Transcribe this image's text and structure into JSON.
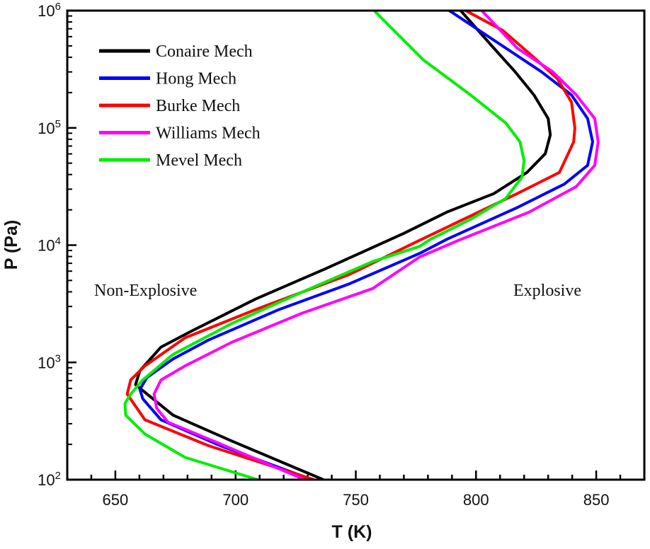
{
  "chart_data": {
    "type": "line",
    "title": "",
    "xlabel": "T (K)",
    "ylabel": "P (Pa)",
    "xlim": [
      630,
      870
    ],
    "ylim": [
      100,
      1000000
    ],
    "yscale": "log",
    "x_ticks": [
      650,
      700,
      750,
      800,
      850
    ],
    "x_tick_labels": [
      "650",
      "700",
      "750",
      "800",
      "850"
    ],
    "y_ticks": [
      100,
      1000,
      10000,
      100000,
      1000000
    ],
    "y_tick_labels": [
      {
        "base": "10",
        "exp": "2"
      },
      {
        "base": "10",
        "exp": "3"
      },
      {
        "base": "10",
        "exp": "4"
      },
      {
        "base": "10",
        "exp": "5"
      },
      {
        "base": "10",
        "exp": "6"
      }
    ],
    "grid": false,
    "legend_position": "top-left",
    "annotations": [
      "Non-Explosive",
      "Explosive"
    ],
    "series": [
      {
        "name": "Conaire Mech",
        "color": "#000000",
        "T": [
          736.5,
          698.3,
          674.0,
          658.4,
          660.2,
          669.0,
          681.9,
          708.3,
          737.6,
          769.9,
          787.8,
          807.4,
          821.2,
          828.8,
          830.9,
          830.0,
          824.1,
          816.2,
          807.4,
          793.6
        ],
        "P": [
          100,
          214,
          355,
          646,
          851,
          1350,
          1860,
          3470,
          6310,
          12600,
          19100,
          27500,
          41700,
          60300,
          87100,
          120000,
          191000,
          302000,
          479000,
          1000000
        ]
      },
      {
        "name": "Hong Mech",
        "color": "#0000ff",
        "T": [
          731.8,
          693.6,
          669.0,
          661.4,
          660.2,
          663.1,
          674.0,
          688.7,
          718.0,
          747.3,
          776.6,
          787.8,
          817.1,
          836.7,
          846.4,
          848.5,
          846.4,
          839.7,
          827.1,
          812.4,
          788.9
        ],
        "P": [
          100,
          195,
          324,
          490,
          589,
          741,
          1070,
          1550,
          2820,
          4680,
          8510,
          11200,
          20900,
          33100,
          47900,
          75900,
          120000,
          191000,
          302000,
          479000,
          1000000
        ]
      },
      {
        "name": "Burke Mech",
        "color": "#ff0000",
        "T": [
          732.6,
          688.7,
          662.3,
          654.9,
          656.4,
          662.3,
          679.0,
          708.3,
          747.3,
          776.6,
          817.1,
          834.7,
          840.6,
          841.1,
          839.7,
          833.8,
          823.0,
          811.2,
          795.7
        ],
        "P": [
          100,
          195,
          324,
          537,
          708,
          933,
          1620,
          2820,
          5620,
          11000,
          27500,
          41700,
          75900,
          100000,
          166000,
          263000,
          417000,
          676000,
          1000000
        ]
      },
      {
        "name": "Williams Mech",
        "color": "#ff00ff",
        "T": [
          728.8,
          690.7,
          671.9,
          667.2,
          666.1,
          669.0,
          679.0,
          698.3,
          727.7,
          757.0,
          776.6,
          792.8,
          822.1,
          841.7,
          849.4,
          850.8,
          849.4,
          841.7,
          831.8,
          817.1,
          802.4
        ],
        "P": [
          100,
          214,
          309,
          407,
          537,
          708,
          933,
          1480,
          2630,
          4270,
          7940,
          11000,
          19100,
          31600,
          47900,
          75900,
          120000,
          191000,
          302000,
          479000,
          1000000
        ]
      },
      {
        "name": "Mevel Mech",
        "color": "#00ee00",
        "T": [
          709.2,
          679.0,
          662.3,
          654.3,
          654.0,
          656.4,
          661.4,
          674.0,
          698.3,
          727.7,
          757.0,
          776.6,
          781.0,
          797.7,
          812.4,
          819.1,
          820.0,
          818.3,
          812.4,
          797.7,
          778.1,
          757.6
        ],
        "P": [
          100,
          155,
          245,
          355,
          447,
          537,
          708,
          1170,
          2140,
          3980,
          7240,
          9770,
          11200,
          16600,
          25100,
          38000,
          52500,
          75900,
          110000,
          191000,
          380000,
          1000000
        ]
      }
    ]
  }
}
